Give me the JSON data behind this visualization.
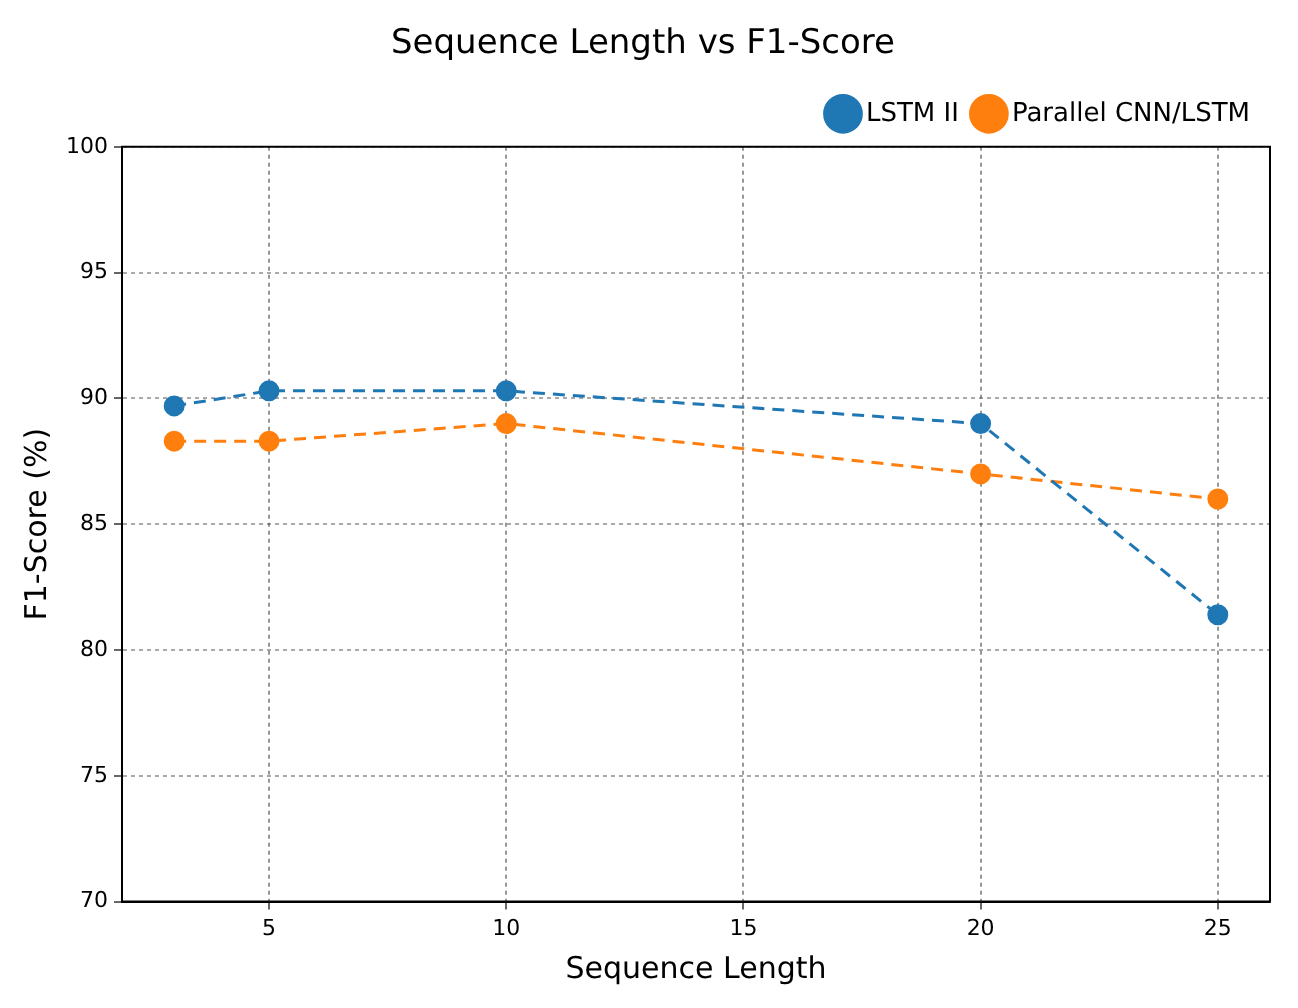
{
  "chart_data": {
    "type": "line",
    "title": "Sequence Length vs F1-Score",
    "xlabel": "Sequence Length",
    "ylabel": "F1-Score (%)",
    "x": [
      3,
      5,
      10,
      20,
      25
    ],
    "series": [
      {
        "name": "LSTM II",
        "color": "#1f77b4",
        "values": [
          89.7,
          90.3,
          90.3,
          89.0,
          81.4
        ]
      },
      {
        "name": "Parallel CNN/LSTM",
        "color": "#ff7f0e",
        "values": [
          88.3,
          88.3,
          89.0,
          87.0,
          86.0
        ]
      }
    ],
    "xlim": [
      1.9,
      26.1
    ],
    "xticks": [
      5,
      10,
      15,
      20,
      25
    ],
    "ylim": [
      70,
      100
    ],
    "yticks": [
      70,
      75,
      80,
      85,
      90,
      95,
      100
    ],
    "grid": true,
    "legend": "top right",
    "marker": "circle",
    "line_style": "dashed"
  }
}
